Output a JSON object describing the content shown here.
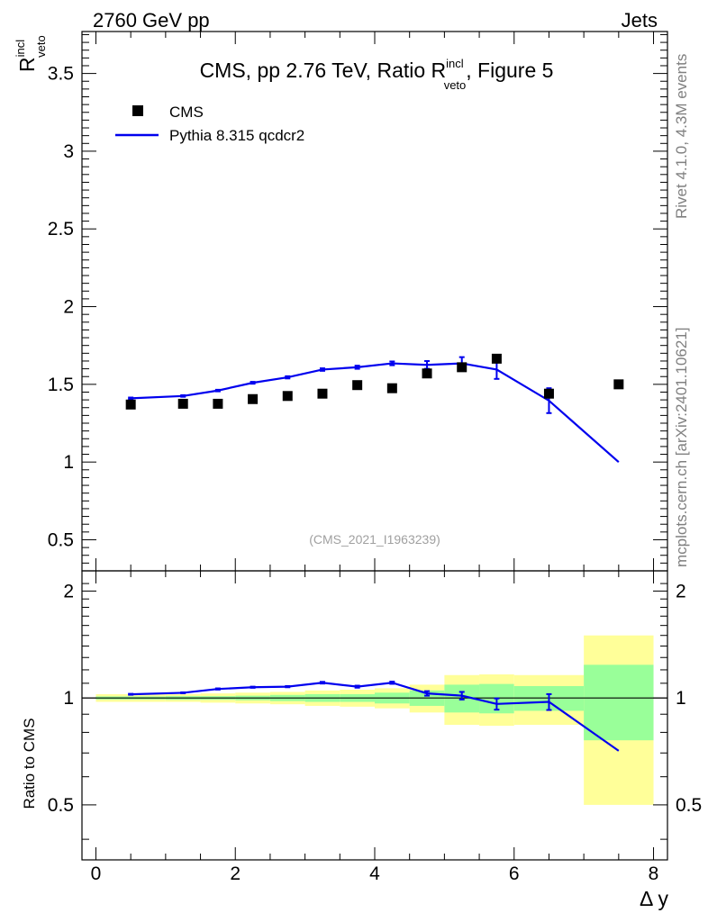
{
  "header": {
    "left": "2760 GeV pp",
    "right": "Jets"
  },
  "side_labels": {
    "upper": "Rivet 4.1.0,  4.3M events",
    "lower": "mcplots.cern.ch [arXiv:2401.10621]"
  },
  "colors": {
    "data": "#000000",
    "mc": "#0000ee",
    "band_stat": "#99ff99",
    "band_total": "#ffff99"
  },
  "chart_data": {
    "type": "line",
    "title": "CMS, pp 2.76 TeV, Ratio R",
    "title_sup": "incl",
    "title_sub": "veto",
    "title_suffix": ", Figure 5",
    "ylabel": "R",
    "ylabel_sup": "incl",
    "ylabel_sub": "veto",
    "ratio_ylabel": "Ratio to CMS",
    "xlabel": "Δ y",
    "watermark": "(CMS_2021_I1963239)",
    "xlim": [
      -0.2,
      8.2
    ],
    "ylim": [
      0.3,
      3.77
    ],
    "ratio_ylim": [
      0.35,
      2.28
    ],
    "x_ticks": [
      "0",
      "2",
      "4",
      "6",
      "8"
    ],
    "x_tick_values": [
      0,
      2,
      4,
      6,
      8
    ],
    "y_ticks": [
      "0.5",
      "1",
      "1.5",
      "2",
      "2.5",
      "3",
      "3.5"
    ],
    "y_tick_values": [
      0.5,
      1,
      1.5,
      2,
      2.5,
      3,
      3.5
    ],
    "ratio_y_ticks": [
      "0.5",
      "1",
      "2"
    ],
    "ratio_y_tick_values": [
      0.5,
      1,
      2
    ],
    "legend": {
      "position": "top-left",
      "entries": [
        "CMS",
        "Pythia 8.315 qcdcr2"
      ]
    },
    "bins": [
      {
        "lo": 0.0,
        "hi": 1.0
      },
      {
        "lo": 1.0,
        "hi": 1.5
      },
      {
        "lo": 1.5,
        "hi": 2.0
      },
      {
        "lo": 2.0,
        "hi": 2.5
      },
      {
        "lo": 2.5,
        "hi": 3.0
      },
      {
        "lo": 3.0,
        "hi": 3.5
      },
      {
        "lo": 3.5,
        "hi": 4.0
      },
      {
        "lo": 4.0,
        "hi": 4.5
      },
      {
        "lo": 4.5,
        "hi": 5.0
      },
      {
        "lo": 5.0,
        "hi": 5.5
      },
      {
        "lo": 5.5,
        "hi": 6.0
      },
      {
        "lo": 6.0,
        "hi": 7.0
      },
      {
        "lo": 7.0,
        "hi": 8.0
      }
    ],
    "series": [
      {
        "name": "CMS",
        "x": [
          0.5,
          1.25,
          1.75,
          2.25,
          2.75,
          3.25,
          3.75,
          4.25,
          4.75,
          5.25,
          5.75,
          6.5,
          7.5
        ],
        "values": [
          1.37,
          1.375,
          1.375,
          1.405,
          1.425,
          1.44,
          1.495,
          1.475,
          1.57,
          1.61,
          1.665,
          1.44,
          1.5
        ]
      },
      {
        "name": "Pythia 8.315 qcdcr2",
        "x": [
          0.5,
          1.25,
          1.75,
          2.25,
          2.75,
          3.25,
          3.75,
          4.25,
          4.75,
          5.25,
          5.75,
          6.5,
          7.5
        ],
        "values": [
          1.41,
          1.425,
          1.46,
          1.51,
          1.545,
          1.595,
          1.61,
          1.635,
          1.625,
          1.635,
          1.595,
          1.395,
          1.0
        ],
        "errors": [
          0.005,
          0.005,
          0.005,
          0.006,
          0.007,
          0.008,
          0.01,
          0.012,
          0.025,
          0.04,
          0.06,
          0.08,
          0.0
        ]
      }
    ],
    "ratio": {
      "x": [
        0.5,
        1.25,
        1.75,
        2.25,
        2.75,
        3.25,
        3.75,
        4.25,
        4.75,
        5.25,
        5.75,
        6.5,
        7.5
      ],
      "values": [
        1.024,
        1.034,
        1.06,
        1.072,
        1.076,
        1.104,
        1.076,
        1.104,
        1.03,
        1.015,
        0.962,
        0.975,
        0.71
      ],
      "errors": [
        0.003,
        0.003,
        0.004,
        0.004,
        0.004,
        0.006,
        0.007,
        0.008,
        0.015,
        0.025,
        0.035,
        0.05,
        0.0
      ],
      "band_stat": [
        0.01,
        0.012,
        0.012,
        0.015,
        0.02,
        0.025,
        0.025,
        0.035,
        0.05,
        0.09,
        0.095,
        0.08,
        0.24
      ],
      "band_total": [
        0.025,
        0.025,
        0.03,
        0.035,
        0.04,
        0.05,
        0.055,
        0.065,
        0.09,
        0.16,
        0.165,
        0.16,
        0.5
      ]
    }
  }
}
